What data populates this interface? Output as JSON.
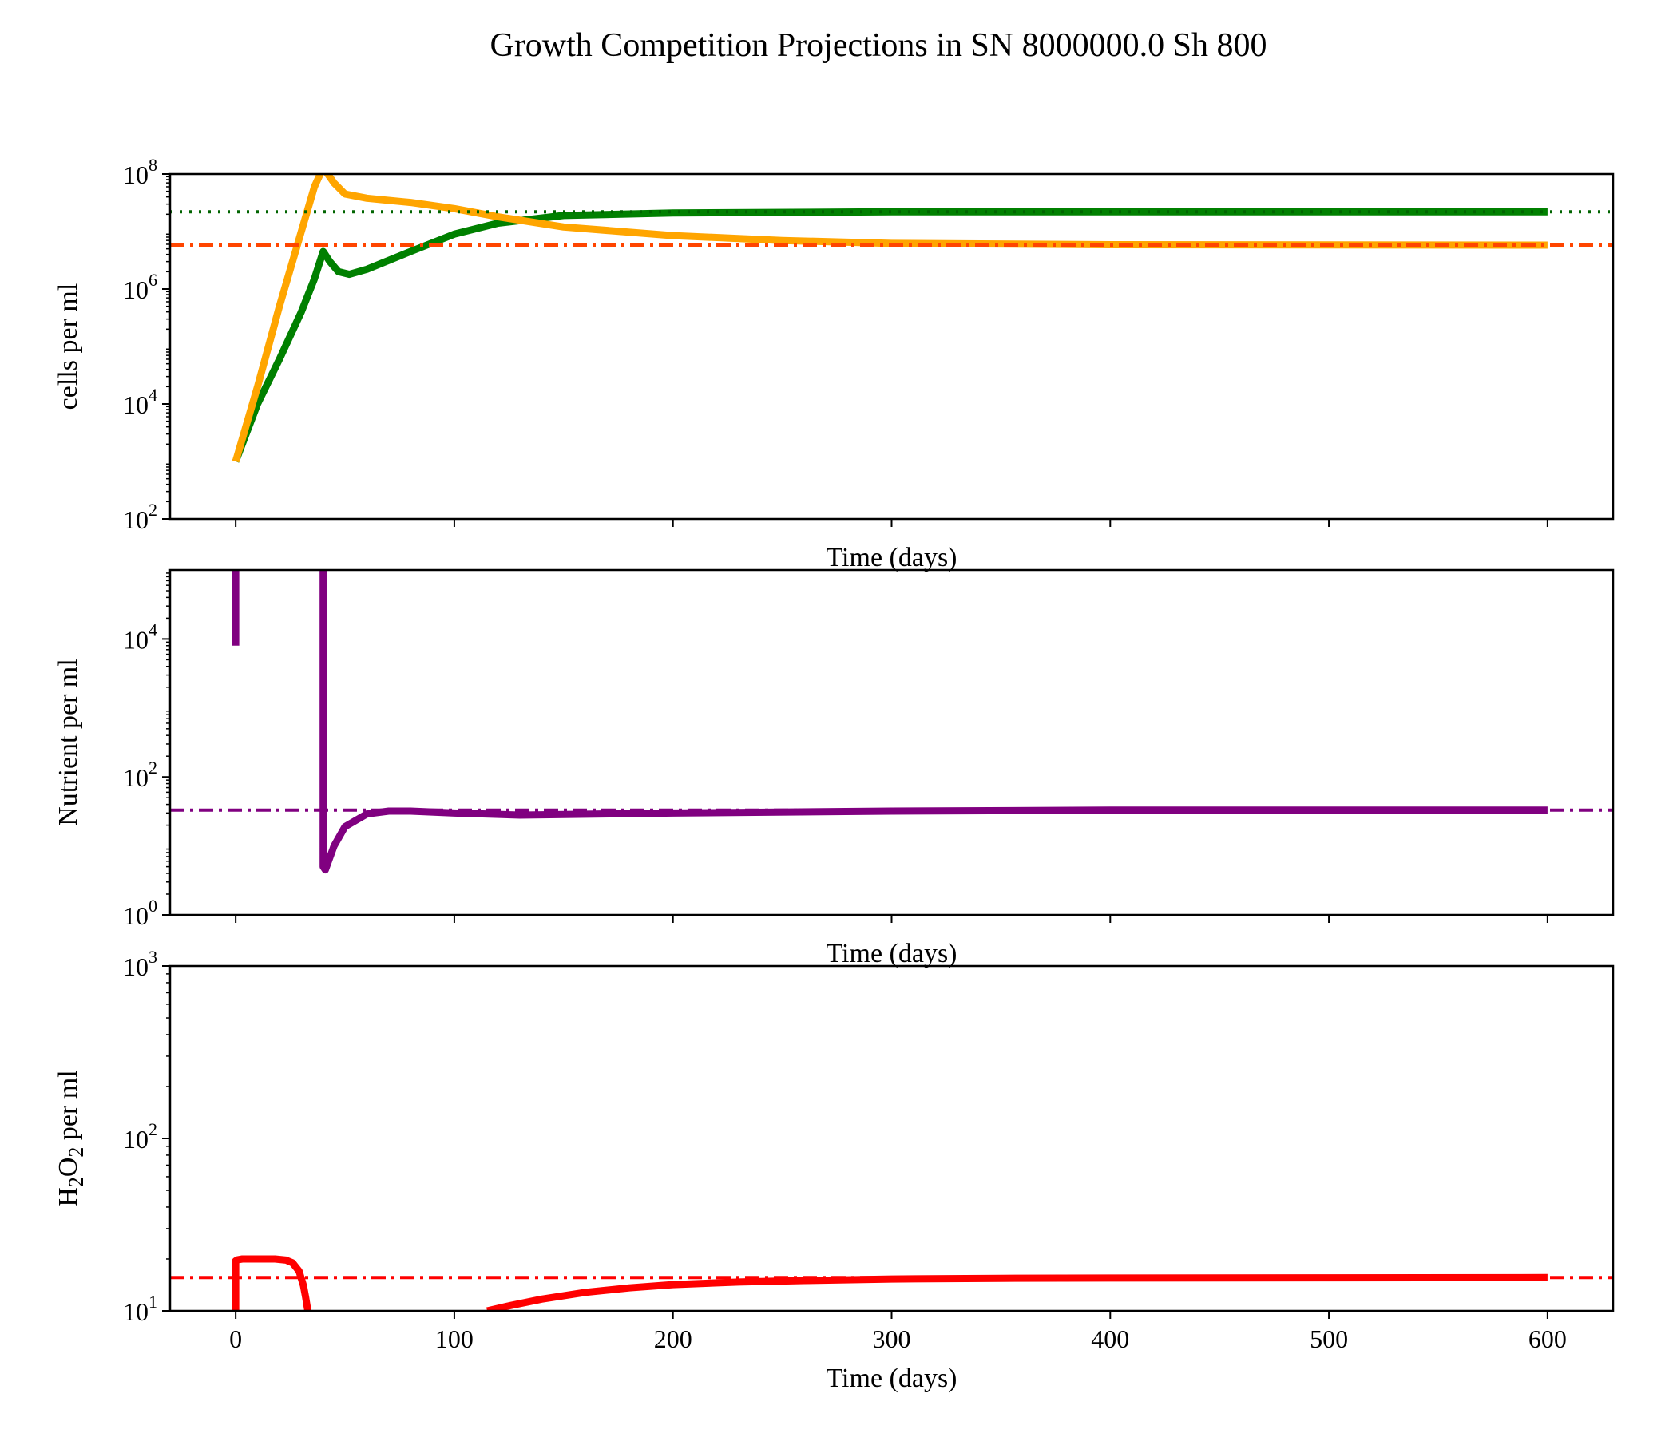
{
  "figure": {
    "title": "Growth Competition Projections in SN 8000000.0 Sh 800"
  },
  "chart_data": [
    {
      "type": "line",
      "panel": "top",
      "xlabel": "Time (days)",
      "ylabel": "cells per ml",
      "yscale": "log",
      "xlim": [
        -30,
        630
      ],
      "ylim": [
        100,
        100000000
      ],
      "xticks": [
        0,
        100,
        200,
        300,
        400,
        500,
        600
      ],
      "xtick_labels_visible": false,
      "yticks": [
        100,
        10000,
        1000000,
        100000000
      ],
      "ytick_labels": [
        {
          "base": "10",
          "exp": "2"
        },
        {
          "base": "10",
          "exp": "4"
        },
        {
          "base": "10",
          "exp": "6"
        },
        {
          "base": "10",
          "exp": "8"
        }
      ],
      "grid": false,
      "series": [
        {
          "color": "#008000",
          "style": "solid",
          "x": [
            0,
            10,
            20,
            30,
            36,
            40,
            43,
            47,
            52,
            60,
            80,
            100,
            120,
            150,
            200,
            300,
            400,
            600
          ],
          "y": [
            1000,
            10000,
            60000,
            400000,
            1500000,
            4500000,
            3000000,
            2000000,
            1800000,
            2200000,
            4500000,
            9000000,
            14000000,
            19000000,
            21000000,
            22000000,
            22000000,
            22000000
          ]
        },
        {
          "color": "#ffa500",
          "style": "solid",
          "x": [
            0,
            10,
            20,
            30,
            36,
            40,
            45,
            50,
            60,
            80,
            100,
            120,
            150,
            200,
            250,
            300,
            400,
            600
          ],
          "y": [
            1000,
            20000,
            500000,
            10000000,
            60000000,
            130000000,
            70000000,
            45000000,
            38000000,
            32000000,
            25000000,
            18000000,
            12000000,
            8500000,
            7000000,
            6200000,
            5900000,
            5800000
          ]
        },
        {
          "color": "#006400",
          "style": "dotted",
          "x": [
            -30,
            630
          ],
          "y": [
            22000000,
            22000000
          ]
        },
        {
          "color": "#ff4500",
          "style": "dashdot",
          "x": [
            -30,
            630
          ],
          "y": [
            5800000,
            5800000
          ]
        }
      ]
    },
    {
      "type": "line",
      "panel": "middle",
      "xlabel": "Time (days)",
      "ylabel": "Nutrient per ml",
      "yscale": "log",
      "xlim": [
        -30,
        630
      ],
      "ylim": [
        1,
        100000
      ],
      "xticks": [
        0,
        100,
        200,
        300,
        400,
        500,
        600
      ],
      "xtick_labels_visible": false,
      "yticks": [
        1,
        100,
        10000
      ],
      "ytick_labels": [
        {
          "base": "10",
          "exp": "0"
        },
        {
          "base": "10",
          "exp": "2"
        },
        {
          "base": "10",
          "exp": "4"
        }
      ],
      "grid": false,
      "series": [
        {
          "color": "#800080",
          "style": "solid",
          "x": [
            0,
            0
          ],
          "y": [
            8000,
            100000
          ]
        },
        {
          "color": "#800080",
          "style": "solid",
          "x": [
            40,
            40,
            41,
            45,
            50,
            60,
            70,
            80,
            100,
            130,
            200,
            300,
            400,
            600
          ],
          "y": [
            100000,
            5,
            4.5,
            10,
            19,
            29,
            32,
            32,
            30,
            28,
            30,
            32,
            33,
            33
          ]
        },
        {
          "color": "#800080",
          "style": "dashdot",
          "x": [
            -30,
            630
          ],
          "y": [
            33,
            33
          ]
        }
      ]
    },
    {
      "type": "line",
      "panel": "bottom",
      "xlabel": "Time (days)",
      "ylabel": "H2O2 per ml",
      "ylabel_parts": {
        "a": "H",
        "sub1": "2",
        "b": "O",
        "sub2": "2",
        "c": " per ml"
      },
      "yscale": "log",
      "xlim": [
        -30,
        630
      ],
      "ylim": [
        10,
        1000
      ],
      "xticks": [
        0,
        100,
        200,
        300,
        400,
        500,
        600
      ],
      "xtick_labels": [
        "0",
        "100",
        "200",
        "300",
        "400",
        "500",
        "600"
      ],
      "xtick_labels_visible": true,
      "yticks": [
        10,
        100,
        1000
      ],
      "ytick_labels": [
        {
          "base": "10",
          "exp": "1"
        },
        {
          "base": "10",
          "exp": "2"
        },
        {
          "base": "10",
          "exp": "3"
        }
      ],
      "grid": false,
      "series": [
        {
          "color": "#ff0000",
          "style": "solid",
          "x": [
            0,
            0,
            1,
            3,
            10,
            18,
            23,
            26,
            29,
            31,
            32,
            33
          ],
          "y": [
            10,
            19.5,
            19.8,
            20,
            20,
            20,
            19.7,
            19,
            17,
            14,
            12,
            10
          ]
        },
        {
          "color": "#ff0000",
          "style": "solid",
          "x": [
            115,
            125,
            140,
            160,
            180,
            200,
            230,
            260,
            300,
            350,
            400,
            500,
            600
          ],
          "y": [
            10,
            10.7,
            11.7,
            12.8,
            13.6,
            14.2,
            14.7,
            15.0,
            15.3,
            15.45,
            15.5,
            15.55,
            15.6
          ]
        },
        {
          "color": "#ff0000",
          "style": "dashdot",
          "x": [
            -30,
            630
          ],
          "y": [
            15.6,
            15.6
          ]
        }
      ]
    }
  ]
}
